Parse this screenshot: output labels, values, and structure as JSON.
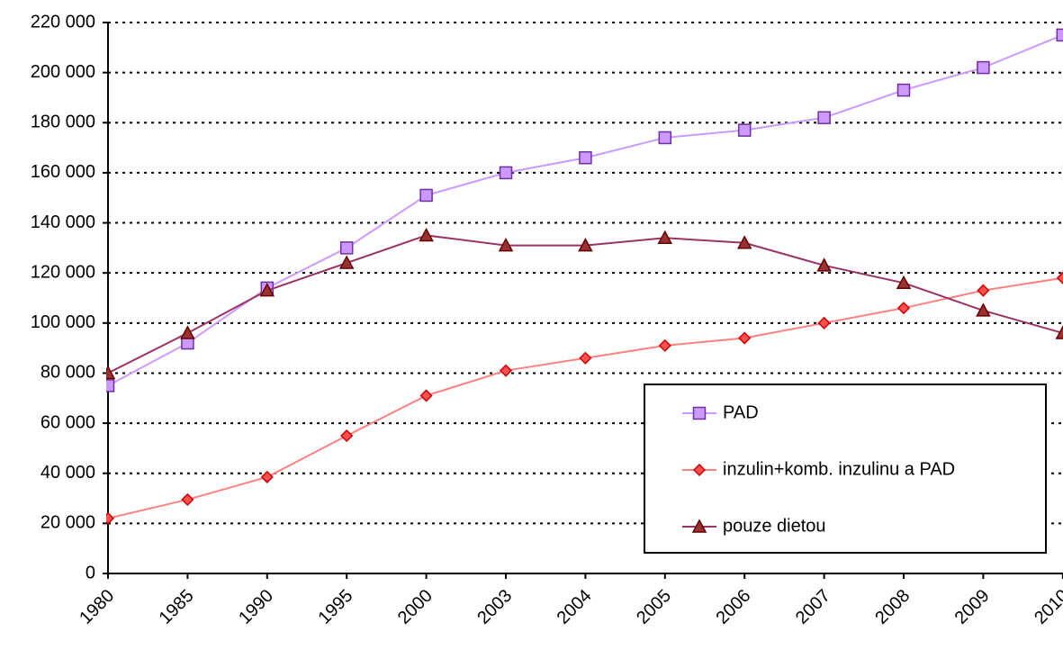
{
  "chart_data": {
    "type": "line",
    "categories": [
      "1980",
      "1985",
      "1990",
      "1995",
      "2000",
      "2003",
      "2004",
      "2005",
      "2006",
      "2007",
      "2008",
      "2009",
      "2010"
    ],
    "series": [
      {
        "name": "PAD",
        "color": "#cc99ff",
        "marker": "square",
        "marker_color": "#cc99ff",
        "marker_stroke": "#7030a0",
        "values": [
          75000,
          92000,
          114000,
          130000,
          151000,
          160000,
          166000,
          174000,
          177000,
          182000,
          193000,
          202000,
          215000
        ]
      },
      {
        "name": "inzulin+komb. inzulinu a PAD",
        "color": "#ff8080",
        "marker": "diamond",
        "marker_color": "#ff5050",
        "marker_stroke": "#cc0000",
        "values": [
          22000,
          29500,
          38500,
          55000,
          71000,
          81000,
          86000,
          91000,
          94000,
          100000,
          106000,
          113000,
          118000
        ]
      },
      {
        "name": "pouze dietou",
        "color": "#993366",
        "marker": "triangle",
        "marker_color": "#993333",
        "marker_stroke": "#660000",
        "values": [
          80000,
          96000,
          113000,
          124000,
          135000,
          131000,
          131000,
          134000,
          132000,
          123000,
          116000,
          105000,
          96000
        ]
      }
    ],
    "ylim": [
      0,
      220000
    ],
    "yticks": [
      0,
      {
        "value": 20000,
        "label": "20 000"
      },
      {
        "value": 40000,
        "label": "40 000"
      },
      {
        "value": 60000,
        "label": "60 000"
      },
      {
        "value": 80000,
        "label": "80 000"
      },
      {
        "value": 100000,
        "label": "100 000"
      },
      {
        "value": 120000,
        "label": "120 000"
      },
      {
        "value": 140000,
        "label": "140 000"
      },
      {
        "value": 160000,
        "label": "160 000"
      },
      {
        "value": 180000,
        "label": "180 000"
      },
      {
        "value": 200000,
        "label": "200 000"
      },
      {
        "value": 220000,
        "label": "220 000"
      }
    ],
    "grid": true,
    "legend": "lower right"
  }
}
